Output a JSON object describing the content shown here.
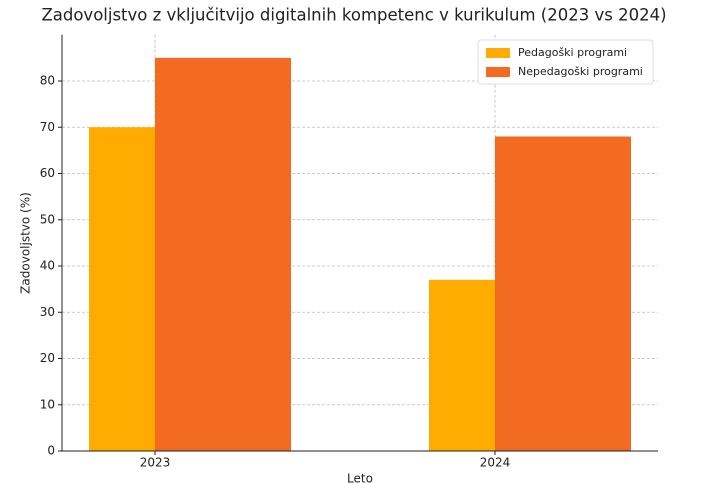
{
  "chart_data": {
    "type": "bar",
    "title": "Zadovoljstvo z vključitvijo digitalnih kompetenc v kurikulum (2023 vs 2024)",
    "xlabel": "Leto",
    "ylabel": "Zadovoljstvo (%)",
    "categories": [
      "2023",
      "2024"
    ],
    "series": [
      {
        "name": "Pedagoški programi",
        "color": "#ffab00",
        "values": [
          70,
          37
        ]
      },
      {
        "name": "Nepedagoški programi",
        "color": "#f26b21",
        "values": [
          85,
          68
        ]
      }
    ],
    "ylim": [
      0,
      90
    ],
    "yticks": [
      0,
      10,
      20,
      30,
      40,
      50,
      60,
      70,
      80
    ],
    "grid": true,
    "legend": "upper right"
  }
}
